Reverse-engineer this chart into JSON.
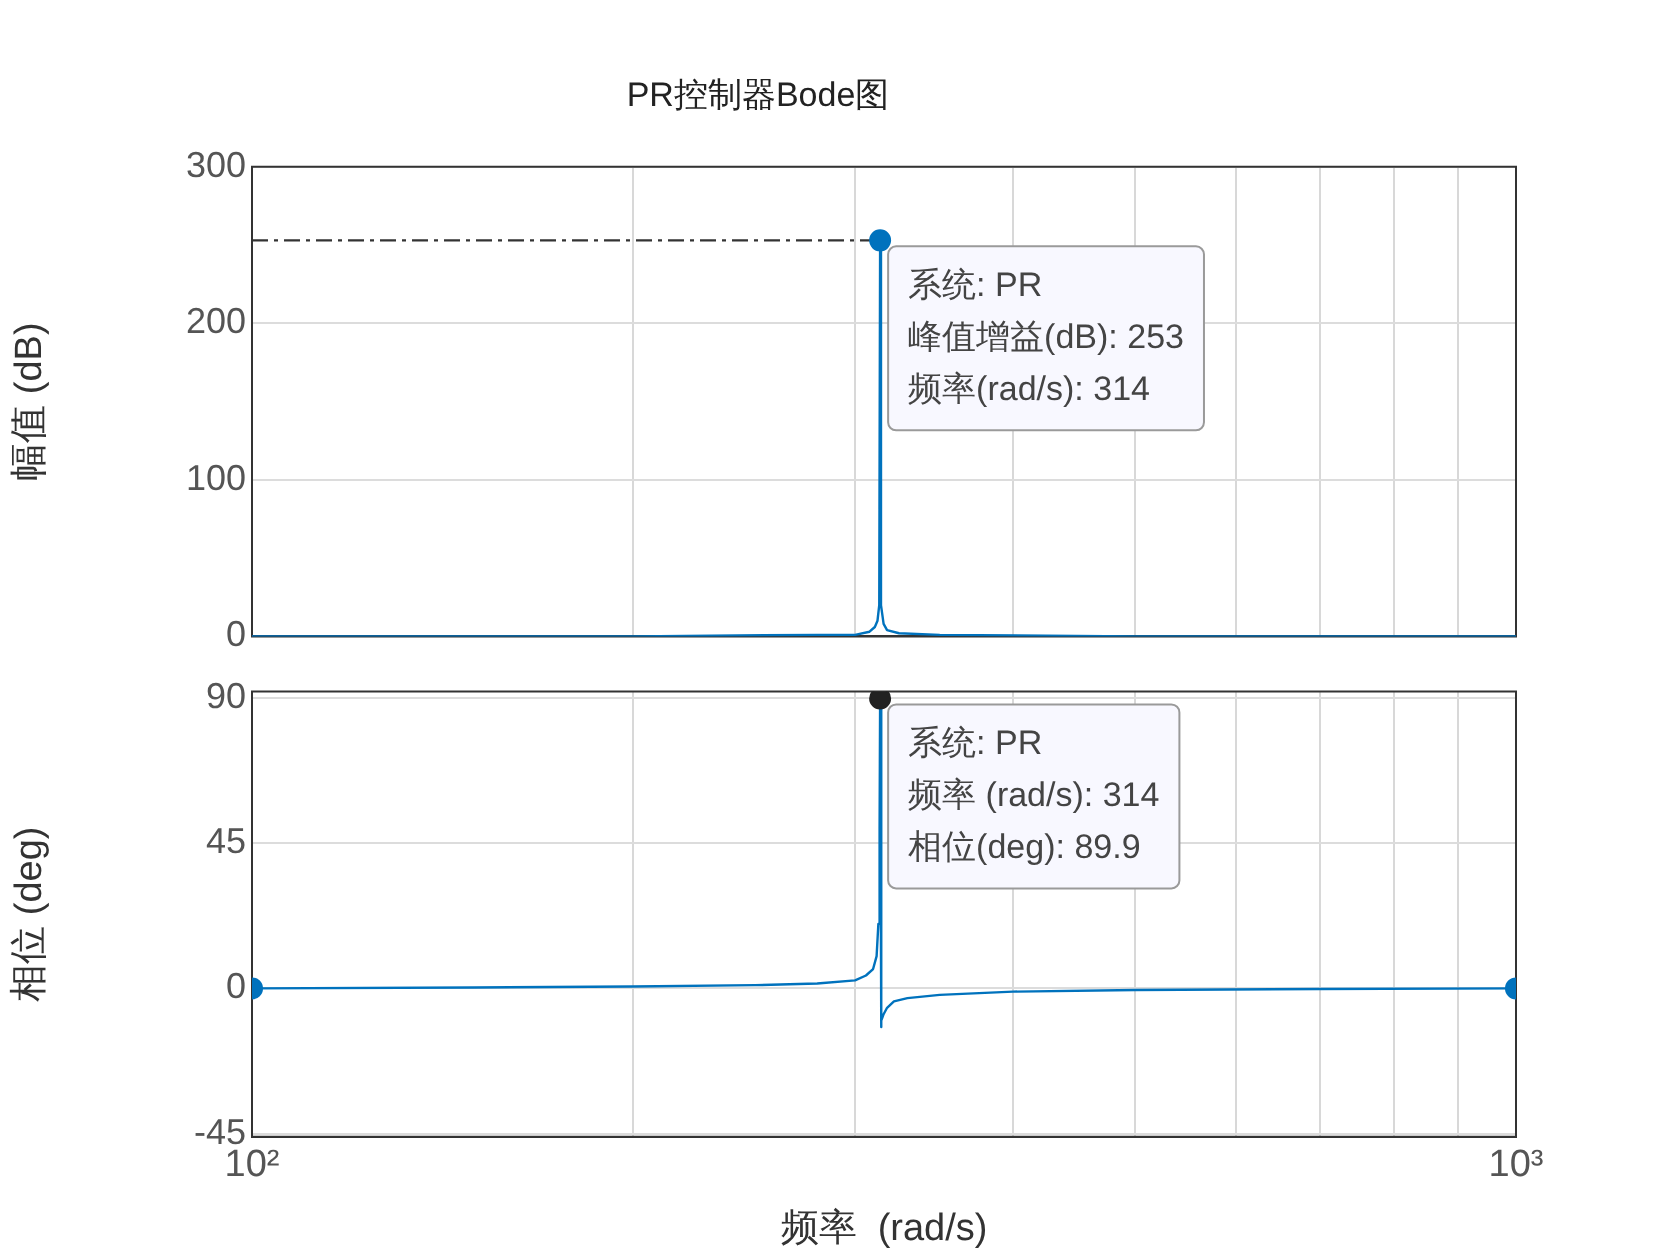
{
  "chart_data": [
    {
      "type": "line",
      "title": "PR控制器Bode图",
      "ylabel": "幅值 (dB)",
      "log": "x",
      "xlim": [
        100,
        1000
      ],
      "ylim": [
        0,
        300
      ],
      "yticks": [
        0,
        100,
        200,
        300
      ],
      "xticks": [
        {
          "value": 100,
          "label": null
        },
        {
          "value": 200,
          "label": null
        },
        {
          "value": 300,
          "label": null
        },
        {
          "value": 400,
          "label": null
        },
        {
          "value": 500,
          "label": null
        },
        {
          "value": 600,
          "label": null
        },
        {
          "value": 700,
          "label": null
        },
        {
          "value": 800,
          "label": null
        },
        {
          "value": 900,
          "label": null
        },
        {
          "value": 1000,
          "label": null
        }
      ],
      "grid": true,
      "legend": false,
      "tick_labels": "y",
      "marker": "none",
      "line_style": "solid",
      "series": [
        {
          "color": "#0072bd",
          "x": [
            100,
            200,
            280,
            300,
            308,
            311,
            312.5,
            313.5,
            314,
            314.5,
            316,
            318,
            325,
            350,
            500,
            1000
          ],
          "values": [
            0,
            0,
            1,
            1,
            3,
            6,
            10,
            20,
            253,
            20,
            8,
            4,
            2,
            1,
            0,
            0
          ]
        },
        {
          "type": "line",
          "color": "#333333",
          "line_style": "dashed",
          "x": [
            100,
            314
          ],
          "values": [
            253,
            253
          ]
        },
        {
          "type": "scatter",
          "color": "#0072bd",
          "marker": "circle",
          "x": [
            314
          ],
          "values": [
            253
          ]
        }
      ],
      "annotations": [
        {
          "text": "系统: PR\n峰值增益(dB): 253\n频率(rad/s): 314",
          "x": 314,
          "y": 253
        }
      ]
    },
    {
      "type": "line",
      "ylabel": "相位 (deg)",
      "xlabel": "频率  (rad/s)",
      "log": "x",
      "xlim": [
        100,
        1000
      ],
      "ylim": [
        -46,
        92
      ],
      "yticks": [
        -45,
        0,
        45,
        90
      ],
      "xticks": [
        {
          "value": 100,
          "label": "10²"
        },
        {
          "value": 200,
          "label": null
        },
        {
          "value": 300,
          "label": null
        },
        {
          "value": 400,
          "label": null
        },
        {
          "value": 500,
          "label": null
        },
        {
          "value": 600,
          "label": null
        },
        {
          "value": 700,
          "label": null
        },
        {
          "value": 800,
          "label": null
        },
        {
          "value": 900,
          "label": null
        },
        {
          "value": 1000,
          "label": "10³"
        }
      ],
      "grid": true,
      "legend": false,
      "marker": "none",
      "line_style": "solid",
      "series": [
        {
          "color": "#0072bd",
          "x": [
            100,
            150,
            200,
            250,
            280,
            300,
            306,
            310,
            312,
            313,
            313.7,
            314,
            314.3,
            315,
            316,
            318,
            322,
            330,
            350,
            400,
            500,
            700,
            1000
          ],
          "values": [
            0,
            0.3,
            0.6,
            1,
            1.5,
            2.5,
            4,
            6,
            10,
            20,
            50,
            89.9,
            -12,
            -10,
            -8,
            -6,
            -4,
            -3,
            -2,
            -1,
            -0.5,
            -0.2,
            0
          ]
        },
        {
          "type": "scatter",
          "color": "#0072bd",
          "marker": "circle",
          "x": [
            100,
            1000
          ],
          "values": [
            0,
            0
          ]
        },
        {
          "type": "scatter",
          "color": "#222222",
          "marker": "circle",
          "x": [
            314
          ],
          "values": [
            89.9
          ]
        }
      ],
      "annotations": [
        {
          "text": "系统: PR\n频率 (rad/s): 314\n相位(deg): 89.9",
          "x": 314,
          "y": 89.9
        }
      ]
    }
  ]
}
